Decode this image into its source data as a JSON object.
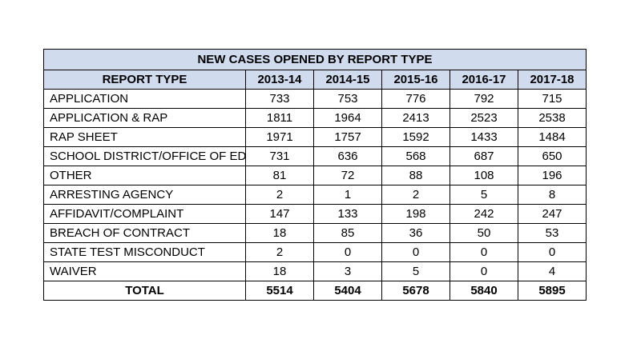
{
  "table": {
    "title": "NEW CASES OPENED BY REPORT TYPE",
    "headers": [
      "REPORT TYPE",
      "2013-14",
      "2014-15",
      "2015-16",
      "2016-17",
      "2017-18"
    ],
    "rows": [
      {
        "type": "APPLICATION",
        "values": [
          "733",
          "753",
          "776",
          "792",
          "715"
        ]
      },
      {
        "type": "APPLICATION & RAP",
        "values": [
          "1811",
          "1964",
          "2413",
          "2523",
          "2538"
        ]
      },
      {
        "type": "RAP SHEET",
        "values": [
          "1971",
          "1757",
          "1592",
          "1433",
          "1484"
        ]
      },
      {
        "type": "SCHOOL DISTRICT/OFFICE OF ED",
        "values": [
          "731",
          "636",
          "568",
          "687",
          "650"
        ]
      },
      {
        "type": "OTHER",
        "values": [
          "81",
          "72",
          "88",
          "108",
          "196"
        ]
      },
      {
        "type": "ARRESTING AGENCY",
        "values": [
          "2",
          "1",
          "2",
          "5",
          "8"
        ]
      },
      {
        "type": "AFFIDAVIT/COMPLAINT",
        "values": [
          "147",
          "133",
          "198",
          "242",
          "247"
        ]
      },
      {
        "type": "BREACH OF CONTRACT",
        "values": [
          "18",
          "85",
          "36",
          "50",
          "53"
        ]
      },
      {
        "type": "STATE TEST MISCONDUCT",
        "values": [
          "2",
          "0",
          "0",
          "0",
          "0"
        ]
      },
      {
        "type": "WAIVER",
        "values": [
          "18",
          "3",
          "5",
          "0",
          "4"
        ]
      }
    ],
    "total": {
      "type": "TOTAL",
      "values": [
        "5514",
        "5404",
        "5678",
        "5840",
        "5895"
      ]
    },
    "colors": {
      "header_fill": "#d0dcee",
      "border": "#000000"
    }
  }
}
